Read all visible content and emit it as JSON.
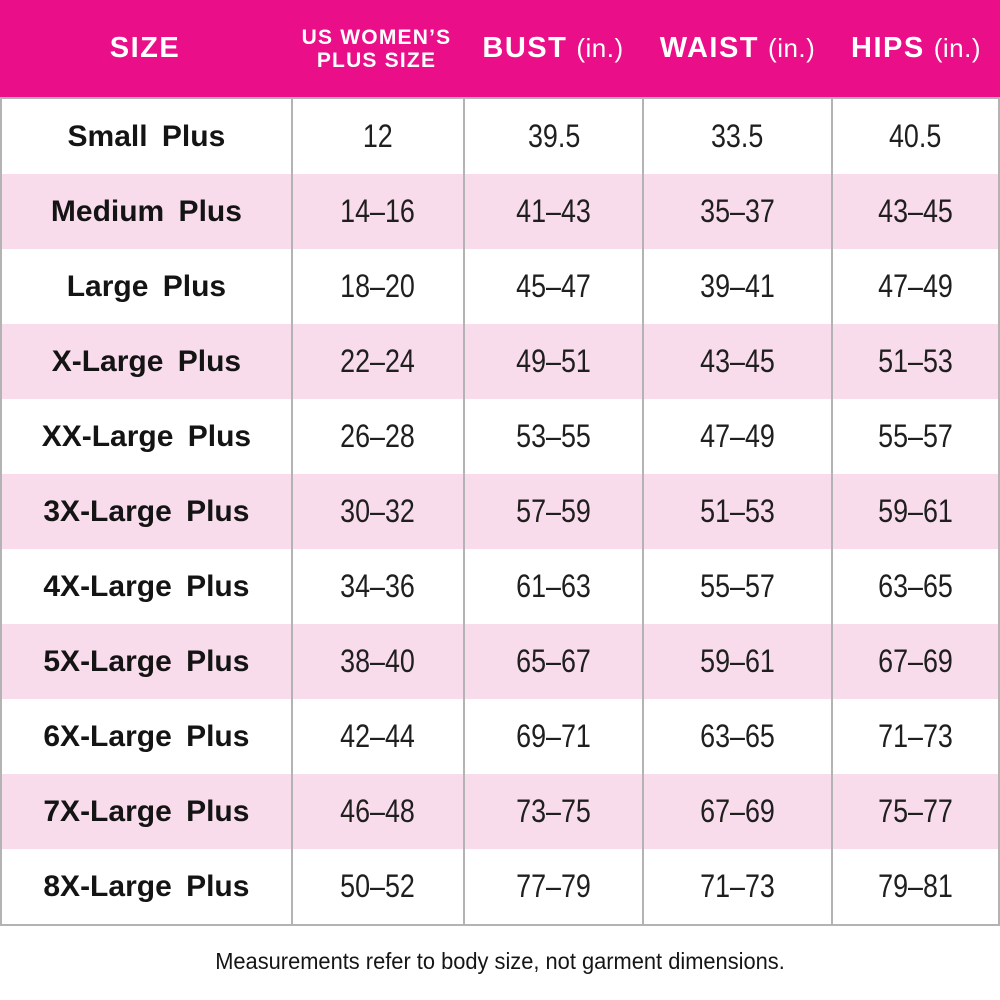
{
  "chart_data": {
    "type": "table",
    "headers": [
      {
        "text": "SIZE"
      },
      {
        "text": "US WOMEN'S PLUS SIZE",
        "line1": "US WOMEN’S",
        "line2": "PLUS SIZE"
      },
      {
        "text": "BUST (in.)",
        "name": "BUST",
        "unit": "(in.)"
      },
      {
        "text": "WAIST (in.)",
        "name": "WAIST",
        "unit": "(in.)"
      },
      {
        "text": "HIPS (in.)",
        "name": "HIPS",
        "unit": "(in.)"
      }
    ],
    "rows": [
      [
        "Small Plus",
        "12",
        "39.5",
        "33.5",
        "40.5"
      ],
      [
        "Medium Plus",
        "14–16",
        "41–43",
        "35–37",
        "43–45"
      ],
      [
        "Large Plus",
        "18–20",
        "45–47",
        "39–41",
        "47–49"
      ],
      [
        "X-Large Plus",
        "22–24",
        "49–51",
        "43–45",
        "51–53"
      ],
      [
        "XX-Large Plus",
        "26–28",
        "53–55",
        "47–49",
        "55–57"
      ],
      [
        "3X-Large Plus",
        "30–32",
        "57–59",
        "51–53",
        "59–61"
      ],
      [
        "4X-Large Plus",
        "34–36",
        "61–63",
        "55–57",
        "63–65"
      ],
      [
        "5X-Large Plus",
        "38–40",
        "65–67",
        "59–61",
        "67–69"
      ],
      [
        "6X-Large Plus",
        "42–44",
        "69–71",
        "63–65",
        "71–73"
      ],
      [
        "7X-Large Plus",
        "46–48",
        "73–75",
        "67–69",
        "75–77"
      ],
      [
        "8X-Large Plus",
        "50–52",
        "77–79",
        "71–73",
        "79–81"
      ]
    ],
    "footnote": "Measurements refer to body size, not garment dimensions."
  },
  "colors": {
    "header_bg": "#EB0E89",
    "header_text": "#FFFFFF",
    "row_alt_bg": "#F9DCEB",
    "grid_line": "#B3B3B3",
    "body_text": "#1F1F1F"
  }
}
